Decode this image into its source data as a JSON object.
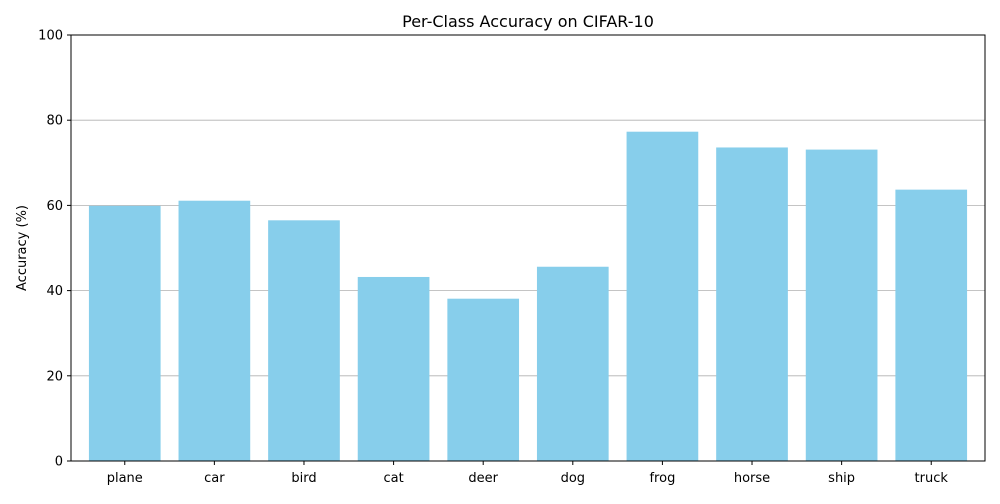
{
  "chart_data": {
    "type": "bar",
    "title": "Per-Class Accuracy on CIFAR-10",
    "xlabel": "",
    "ylabel": "Accuracy (%)",
    "categories": [
      "plane",
      "car",
      "bird",
      "cat",
      "deer",
      "dog",
      "frog",
      "horse",
      "ship",
      "truck"
    ],
    "values": [
      59.9,
      61.1,
      56.5,
      43.2,
      38.1,
      45.6,
      77.3,
      73.6,
      73.1,
      63.7
    ],
    "ylim": [
      0,
      100
    ],
    "yticks": [
      "0",
      "20",
      "40",
      "60",
      "80",
      "100"
    ],
    "grid": "y-axis on",
    "bar_color": "#87ceeb",
    "grid_color": "#b0b0b0",
    "axis_color": "#000000"
  }
}
